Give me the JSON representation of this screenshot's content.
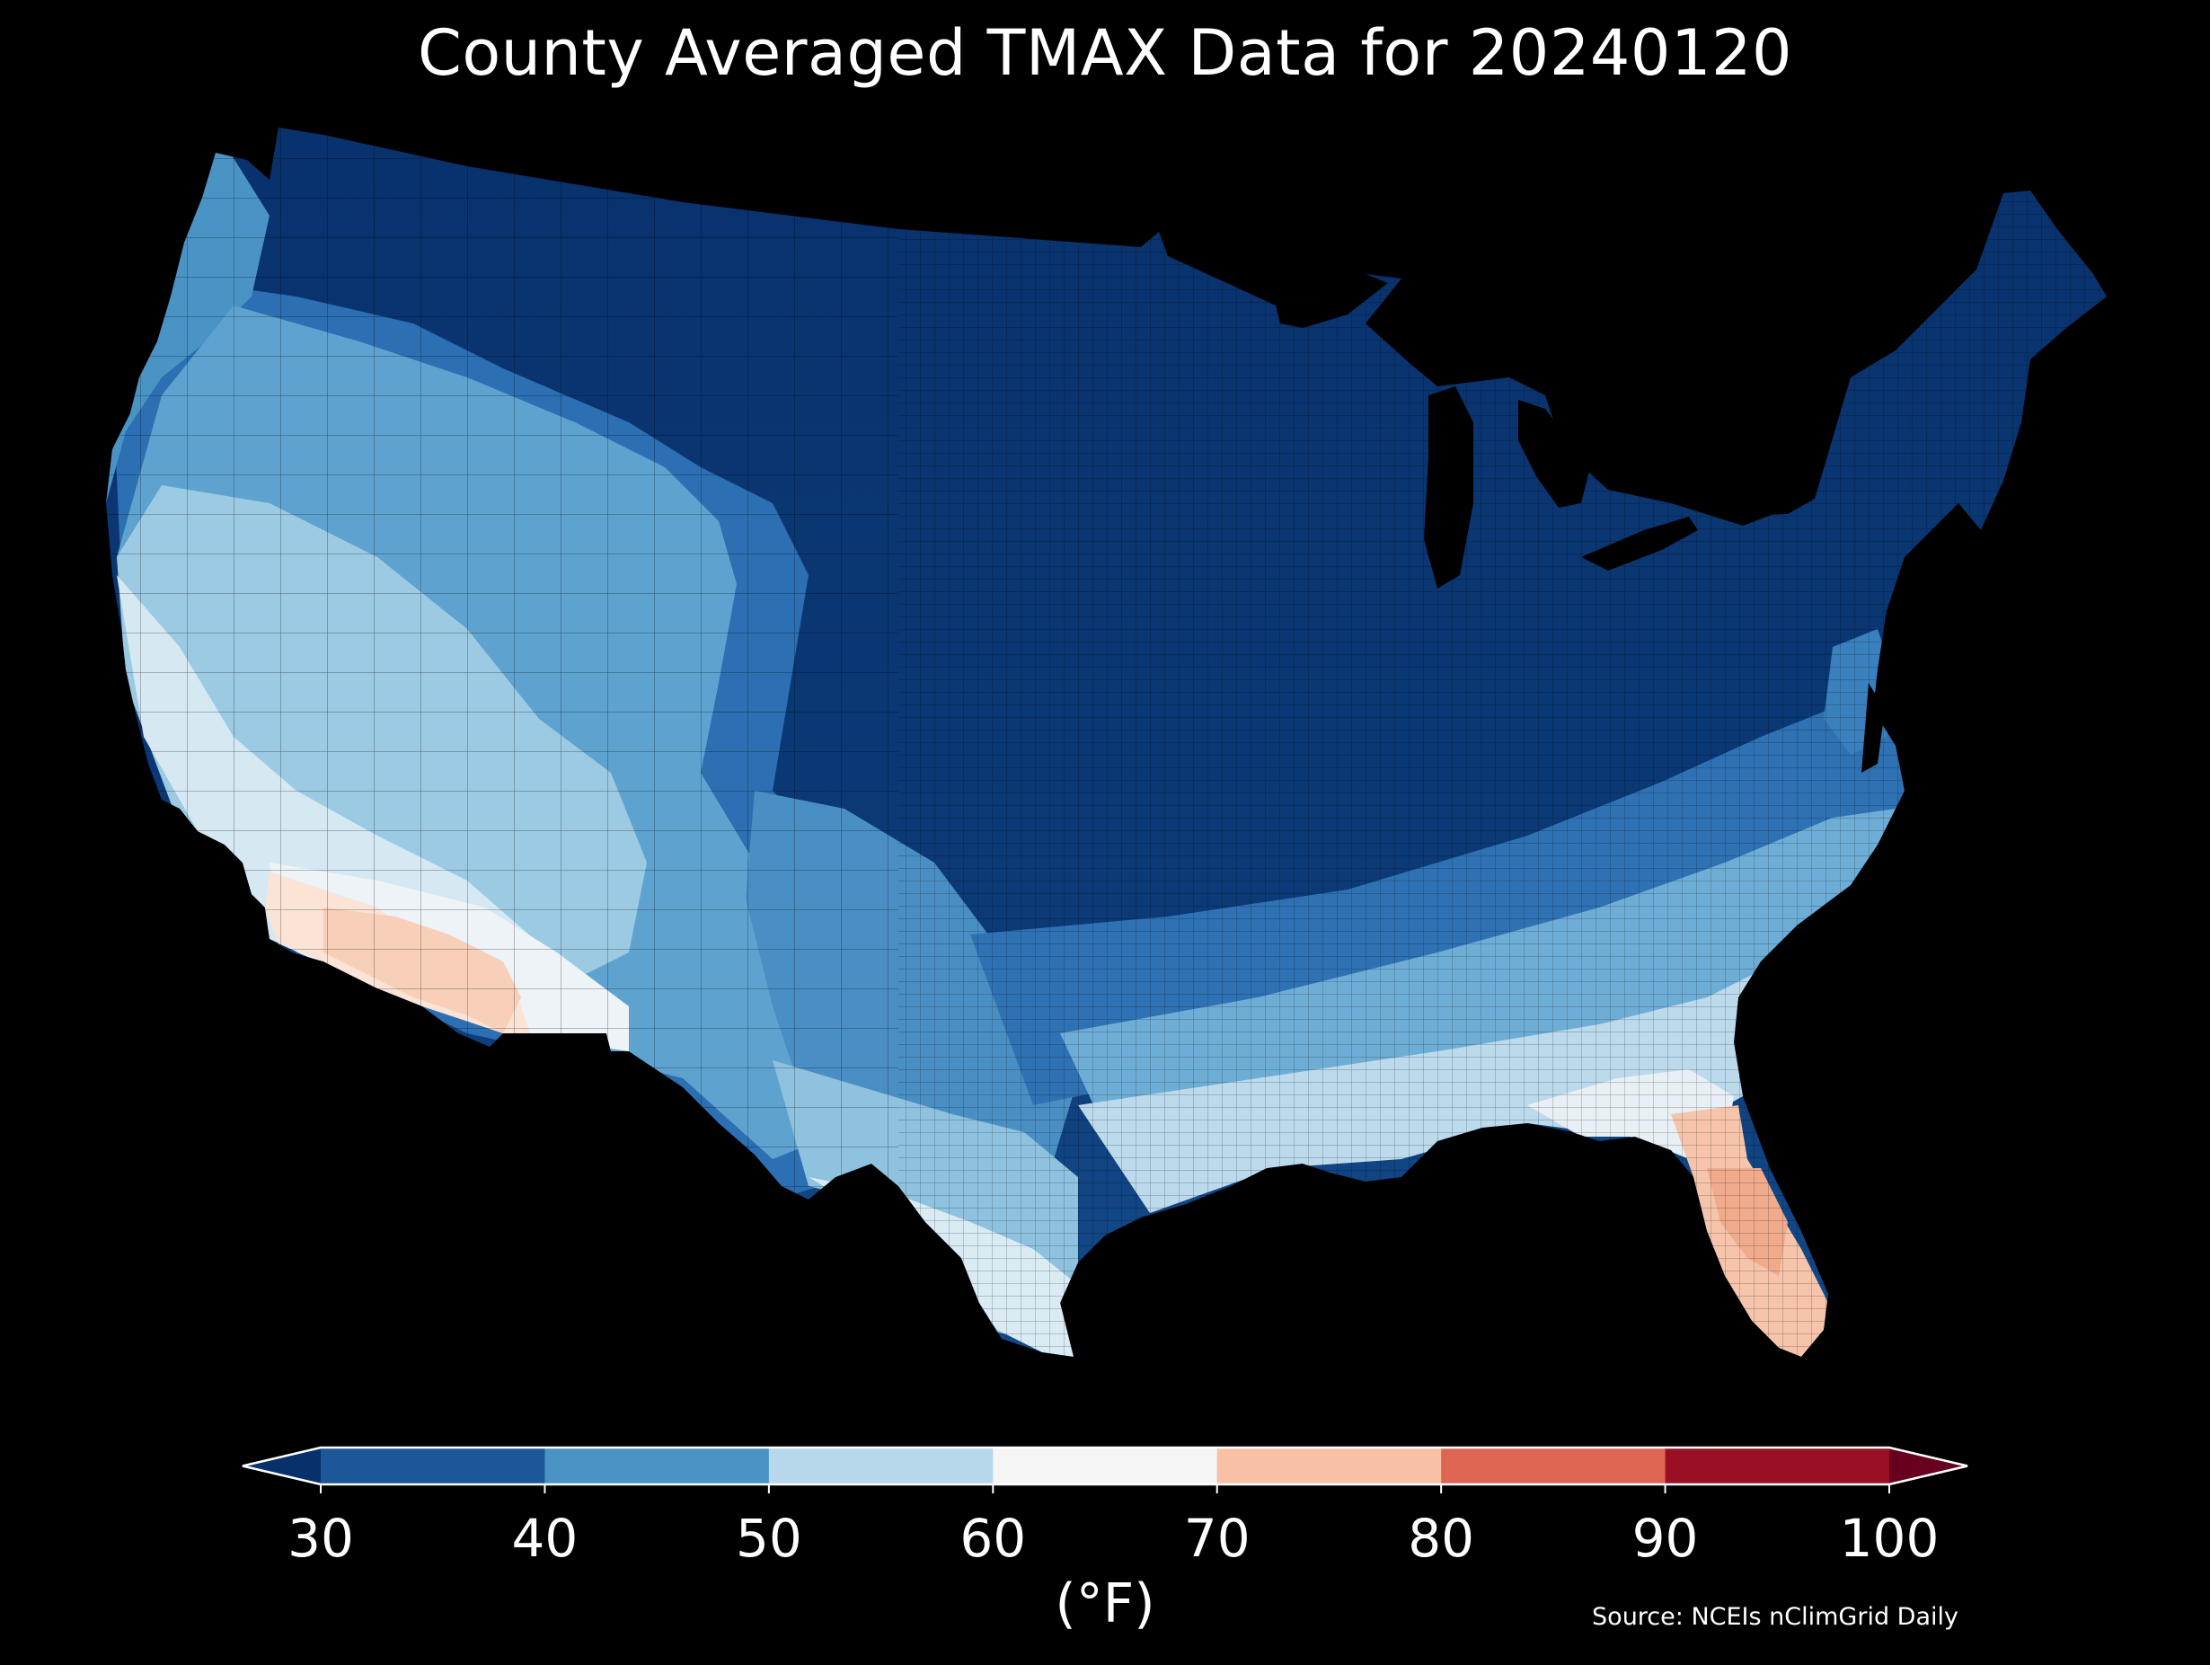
{
  "title": "County Averaged TMAX Data for 20240120",
  "map": {
    "region": "Contiguous United States",
    "description_level": "county choropleth",
    "background_color": "#000000",
    "county_border_color": "#000000"
  },
  "colorbar": {
    "unit_label": "(°F)",
    "ticks": [
      "30",
      "40",
      "50",
      "60",
      "70",
      "80",
      "90",
      "100"
    ],
    "bins": [
      {
        "range": [
          30,
          40
        ],
        "color": "#1b5799"
      },
      {
        "range": [
          40,
          50
        ],
        "color": "#4a93c5"
      },
      {
        "range": [
          50,
          60
        ],
        "color": "#b7d7ea"
      },
      {
        "range": [
          60,
          70
        ],
        "color": "#f5f5f5"
      },
      {
        "range": [
          70,
          80
        ],
        "color": "#f8c0a4"
      },
      {
        "range": [
          80,
          90
        ],
        "color": "#dd6652"
      },
      {
        "range": [
          90,
          100
        ],
        "color": "#9b0f25"
      }
    ],
    "under_color": "#08306b",
    "over_color": "#67001f",
    "extend": "both"
  },
  "source_note": "Source: NCEIs nClimGrid Daily"
}
